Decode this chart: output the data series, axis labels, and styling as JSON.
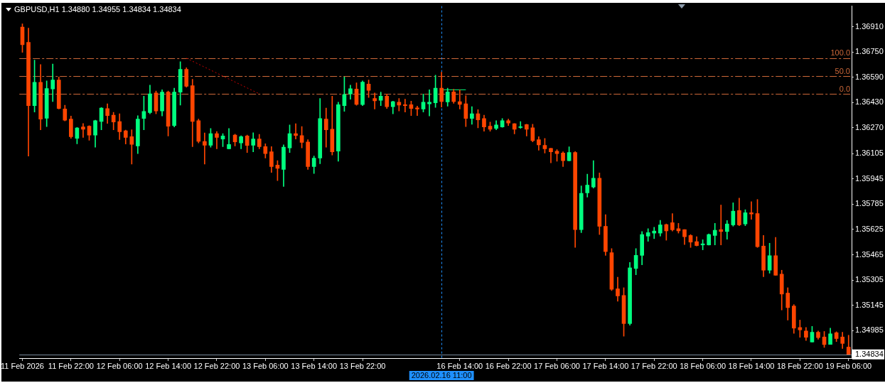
{
  "chart_data": {
    "type": "candlestick",
    "title": "GBPUSD,H1 1.34880 1.34955 1.34834 1.34834",
    "categories": [
      "11 Feb 2026",
      null,
      null,
      null,
      null,
      null,
      null,
      null,
      "11 Feb 22:00",
      null,
      null,
      null,
      null,
      null,
      null,
      null,
      "12 Feb 06:00",
      null,
      null,
      null,
      null,
      null,
      null,
      null,
      "12 Feb 14:00",
      null,
      null,
      null,
      null,
      null,
      null,
      null,
      "12 Feb 22:00",
      null,
      null,
      null,
      null,
      null,
      null,
      null,
      "13 Feb 06:00",
      null,
      null,
      null,
      null,
      null,
      null,
      null,
      "13 Feb 14:00",
      null,
      null,
      null,
      null,
      null,
      null,
      null,
      "13 Feb 22:00",
      null,
      null,
      null,
      null,
      null,
      null,
      null,
      null,
      null,
      null,
      null,
      null,
      "2026.02.16 11:00",
      null,
      null,
      "16 Feb 14:00",
      null,
      null,
      null,
      null,
      null,
      null,
      null,
      "16 Feb 22:00",
      null,
      null,
      null,
      null,
      null,
      null,
      null,
      "17 Feb 06:00",
      null,
      null,
      null,
      null,
      null,
      null,
      null,
      "17 Feb 14:00",
      null,
      null,
      null,
      null,
      null,
      null,
      null,
      "17 Feb 22:00",
      null,
      null,
      null,
      null,
      null,
      null,
      null,
      "18 Feb 06:00",
      null,
      null,
      null,
      null,
      null,
      null,
      null,
      "18 Feb 14:00",
      null,
      null,
      null,
      null,
      null,
      null,
      null,
      "18 Feb 22:00",
      null,
      null,
      null,
      null,
      null,
      null,
      null,
      "19 Feb 06:00"
    ],
    "ohlc": [
      [
        1.36907,
        1.36928,
        1.36747,
        1.36796
      ],
      [
        1.36811,
        1.369,
        1.3609,
        1.36409
      ],
      [
        1.36409,
        1.36698,
        1.36369,
        1.36557
      ],
      [
        1.36557,
        1.3667,
        1.36257,
        1.36324
      ],
      [
        1.3633,
        1.36566,
        1.36277,
        1.36518
      ],
      [
        1.36515,
        1.36673,
        1.36435,
        1.36572
      ],
      [
        1.36572,
        1.36591,
        1.36388,
        1.36391
      ],
      [
        1.36388,
        1.36412,
        1.36313,
        1.36317
      ],
      [
        1.36324,
        1.36344,
        1.36202,
        1.36213
      ],
      [
        1.36202,
        1.36272,
        1.36168,
        1.36268
      ],
      [
        1.36275,
        1.36296,
        1.36208,
        1.3626
      ],
      [
        1.36279,
        1.36283,
        1.3619,
        1.36223
      ],
      [
        1.36223,
        1.36318,
        1.36146,
        1.36314
      ],
      [
        1.36309,
        1.36398,
        1.36257,
        1.36394
      ],
      [
        1.36391,
        1.36421,
        1.36297,
        1.36346
      ],
      [
        1.36349,
        1.36367,
        1.36257,
        1.36306
      ],
      [
        1.36309,
        1.36358,
        1.36195,
        1.36244
      ],
      [
        1.3625,
        1.36255,
        1.36166,
        1.36208
      ],
      [
        1.36213,
        1.36257,
        1.36039,
        1.36164
      ],
      [
        1.36154,
        1.36346,
        1.36106,
        1.36324
      ],
      [
        1.36328,
        1.36469,
        1.36257,
        1.36373
      ],
      [
        1.36366,
        1.36539,
        1.36358,
        1.36484
      ],
      [
        1.3649,
        1.36502,
        1.36358,
        1.36376
      ],
      [
        1.36376,
        1.3651,
        1.36344,
        1.36495
      ],
      [
        1.36495,
        1.36502,
        1.36217,
        1.36279
      ],
      [
        1.36284,
        1.3652,
        1.36275,
        1.36495
      ],
      [
        1.36495,
        1.36688,
        1.36413,
        1.3664
      ],
      [
        1.3664,
        1.3665,
        1.36527,
        1.36532
      ],
      [
        1.36536,
        1.36576,
        1.36149,
        1.36309
      ],
      [
        1.36314,
        1.36324,
        1.36173,
        1.36183
      ],
      [
        1.36183,
        1.36237,
        1.36039,
        1.36158
      ],
      [
        1.36158,
        1.36265,
        1.36146,
        1.36232
      ],
      [
        1.36232,
        1.36246,
        1.36136,
        1.36208
      ],
      [
        1.36198,
        1.36232,
        1.36149,
        1.36217
      ],
      [
        1.36136,
        1.36265,
        1.36136,
        1.36164
      ],
      [
        1.36223,
        1.36229,
        1.36154,
        1.3618
      ],
      [
        1.36173,
        1.36219,
        1.36136,
        1.36213
      ],
      [
        1.36217,
        1.36223,
        1.36112,
        1.36157
      ],
      [
        1.36158,
        1.36238,
        1.36117,
        1.36198
      ],
      [
        1.36198,
        1.36228,
        1.36136,
        1.3615
      ],
      [
        1.3615,
        1.36168,
        1.36077,
        1.36106
      ],
      [
        1.36117,
        1.3615,
        1.35986,
        1.36024
      ],
      [
        1.36033,
        1.36061,
        1.35935,
        1.36012
      ],
      [
        1.36005,
        1.36161,
        1.35897,
        1.36146
      ],
      [
        1.36142,
        1.36287,
        1.36112,
        1.36232
      ],
      [
        1.36232,
        1.36295,
        1.36198,
        1.3622
      ],
      [
        1.3622,
        1.36277,
        1.36142,
        1.36176
      ],
      [
        1.36179,
        1.36194,
        1.36005,
        1.36024
      ],
      [
        1.36024,
        1.3609,
        1.3598,
        1.36077
      ],
      [
        1.36077,
        1.36455,
        1.36042,
        1.36328
      ],
      [
        1.36324,
        1.36394,
        1.36146,
        1.36257
      ],
      [
        1.3626,
        1.36469,
        1.36097,
        1.36117
      ],
      [
        1.36121,
        1.36431,
        1.36057,
        1.36416
      ],
      [
        1.36409,
        1.36591,
        1.36373,
        1.3648
      ],
      [
        1.36484,
        1.36539,
        1.3645,
        1.36517
      ],
      [
        1.36514,
        1.36554,
        1.36412,
        1.36417
      ],
      [
        1.36416,
        1.36566,
        1.36409,
        1.36558
      ],
      [
        1.36546,
        1.36572,
        1.36461,
        1.36506
      ],
      [
        1.36455,
        1.3649,
        1.36388,
        1.3644
      ],
      [
        1.36443,
        1.36495,
        1.36409,
        1.36469
      ],
      [
        1.36469,
        1.36483,
        1.36391,
        1.36403
      ],
      [
        1.36403,
        1.36438,
        1.36358,
        1.36435
      ],
      [
        1.36431,
        1.36455,
        1.36376,
        1.36413
      ],
      [
        1.36416,
        1.3645,
        1.36369,
        1.36409
      ],
      [
        1.36416,
        1.36438,
        1.36346,
        1.36391
      ],
      [
        1.36395,
        1.36406,
        1.36346,
        1.36388
      ],
      [
        1.36388,
        1.36483,
        1.36369,
        1.36431
      ],
      [
        1.36421,
        1.3651,
        1.36344,
        1.36431
      ],
      [
        1.36428,
        1.36602,
        1.36398,
        1.3652
      ],
      [
        1.3652,
        1.36621,
        1.36401,
        1.36435
      ],
      [
        1.36433,
        1.3652,
        1.36406,
        1.36497
      ],
      [
        1.36497,
        1.36513,
        1.36424,
        1.36435
      ],
      [
        1.36435,
        1.3651,
        1.36388,
        1.36417
      ],
      [
        1.36421,
        1.36473,
        1.36277,
        1.36328
      ],
      [
        1.36328,
        1.36403,
        1.36291,
        1.36358
      ],
      [
        1.36358,
        1.36384,
        1.36269,
        1.3632
      ],
      [
        1.36328,
        1.36349,
        1.36247,
        1.36275
      ],
      [
        1.36279,
        1.36305,
        1.36247,
        1.3626
      ],
      [
        1.36265,
        1.36314,
        1.36257,
        1.36287
      ],
      [
        1.36275,
        1.36328,
        1.36272,
        1.36314
      ],
      [
        1.36314,
        1.36324,
        1.36284,
        1.36299
      ],
      [
        1.36295,
        1.36296,
        1.3623,
        1.3626
      ],
      [
        1.36271,
        1.36309,
        1.36265,
        1.36275
      ],
      [
        1.3629,
        1.36292,
        1.36217,
        1.3626
      ],
      [
        1.36269,
        1.36292,
        1.3618,
        1.36188
      ],
      [
        1.36194,
        1.36213,
        1.36127,
        1.36161
      ],
      [
        1.36158,
        1.36202,
        1.36109,
        1.36136
      ],
      [
        1.36139,
        1.3614,
        1.36047,
        1.36117
      ],
      [
        1.36121,
        1.36131,
        1.36057,
        1.36106
      ],
      [
        1.36109,
        1.36117,
        1.36023,
        1.36061
      ],
      [
        1.36061,
        1.36149,
        1.3606,
        1.36113
      ],
      [
        1.36113,
        1.36118,
        1.35511,
        1.35624
      ],
      [
        1.35624,
        1.35901,
        1.35605,
        1.35854
      ],
      [
        1.35857,
        1.35976,
        1.3583,
        1.35906
      ],
      [
        1.35894,
        1.36061,
        1.35887,
        1.3595
      ],
      [
        1.3595,
        1.35983,
        1.35593,
        1.35645
      ],
      [
        1.35645,
        1.35719,
        1.35461,
        1.35485
      ],
      [
        1.35478,
        1.35504,
        1.35238,
        1.35246
      ],
      [
        1.35249,
        1.35323,
        1.3517,
        1.35204
      ],
      [
        1.35207,
        1.35256,
        1.34949,
        1.35029
      ],
      [
        1.35029,
        1.35416,
        1.35019,
        1.35382
      ],
      [
        1.35378,
        1.35504,
        1.35338,
        1.35461
      ],
      [
        1.35461,
        1.35612,
        1.35401,
        1.35593
      ],
      [
        1.35583,
        1.3563,
        1.3555,
        1.35605
      ],
      [
        1.35602,
        1.35639,
        1.35567,
        1.35615
      ],
      [
        1.35602,
        1.35683,
        1.35583,
        1.35654
      ],
      [
        1.35656,
        1.3566,
        1.35557,
        1.35616
      ],
      [
        1.35668,
        1.35726,
        1.35615,
        1.35623
      ],
      [
        1.3563,
        1.35664,
        1.35602,
        1.35616
      ],
      [
        1.35624,
        1.35624,
        1.3553,
        1.35579
      ],
      [
        1.35587,
        1.35593,
        1.35511,
        1.35545
      ],
      [
        1.35548,
        1.35579,
        1.3552,
        1.35523
      ],
      [
        1.35527,
        1.3556,
        1.35496,
        1.35534
      ],
      [
        1.35527,
        1.35597,
        1.35526,
        1.35593
      ],
      [
        1.35587,
        1.35664,
        1.35527,
        1.3562
      ],
      [
        1.35624,
        1.3578,
        1.35527,
        1.35612
      ],
      [
        1.35612,
        1.35682,
        1.35563,
        1.3566
      ],
      [
        1.35654,
        1.35794,
        1.35646,
        1.35741
      ],
      [
        1.35745,
        1.35824,
        1.35649,
        1.35654
      ],
      [
        1.3566,
        1.3575,
        1.35649,
        1.35731
      ],
      [
        1.35731,
        1.35801,
        1.35689,
        1.35723
      ],
      [
        1.35726,
        1.35815,
        1.35511,
        1.35516
      ],
      [
        1.3552,
        1.35587,
        1.35326,
        1.35367
      ],
      [
        1.35367,
        1.35538,
        1.35348,
        1.35459
      ],
      [
        1.35459,
        1.35575,
        1.35335,
        1.35335
      ],
      [
        1.35342,
        1.35367,
        1.35115,
        1.35216
      ],
      [
        1.35222,
        1.35256,
        1.35051,
        1.3513
      ],
      [
        1.3514,
        1.35149,
        1.34967,
        1.35
      ],
      [
        1.35004,
        1.35051,
        1.34942,
        1.34989
      ],
      [
        1.34982,
        1.35004,
        1.34922,
        1.34942
      ],
      [
        1.34912,
        1.35011,
        1.34912,
        1.34974
      ],
      [
        1.34974,
        1.34982,
        1.3493,
        1.3494
      ],
      [
        1.34944,
        1.34979,
        1.34878,
        1.34896
      ],
      [
        1.34897,
        1.35,
        1.34897,
        1.34964
      ],
      [
        1.34971,
        1.34977,
        1.34915,
        1.34934
      ],
      [
        1.34944,
        1.34974,
        1.34871,
        1.34903
      ],
      [
        1.3488,
        1.34955,
        1.34834,
        1.34834
      ]
    ],
    "colors": [
      "#ff4500",
      "#ff4500",
      "#00ff7f",
      "#ff4500",
      "#00ff7f",
      "#00ff7f",
      "#ff4500",
      "#ff4500",
      "#ff4500",
      "#00ff7f",
      "#ff4500",
      "#ff4500",
      "#00ff7f",
      "#00ff7f",
      "#ff4500",
      "#ff4500",
      "#ff4500",
      "#ff4500",
      "#ff4500",
      "#00ff7f",
      "#00ff7f",
      "#00ff7f",
      "#ff4500",
      "#00ff7f",
      "#ff4500",
      "#00ff7f",
      "#00ff7f",
      "#ff4500",
      "#ff4500",
      "#ff4500",
      "#ff4500",
      "#00ff7f",
      "#ff4500",
      "#00ff7f",
      "#00ff7f",
      "#ff4500",
      "#00ff7f",
      "#ff4500",
      "#00ff7f",
      "#ff4500",
      "#ff4500",
      "#ff4500",
      "#ff4500",
      "#00ff7f",
      "#00ff7f",
      "#ff4500",
      "#ff4500",
      "#ff4500",
      "#00ff7f",
      "#00ff7f",
      "#ff4500",
      "#ff4500",
      "#00ff7f",
      "#00ff7f",
      "#00ff7f",
      "#ff4500",
      "#00ff7f",
      "#ff4500",
      "#ff4500",
      "#00ff7f",
      "#ff4500",
      "#00ff7f",
      "#ff4500",
      "#ff4500",
      "#ff4500",
      "#ff4500",
      "#00ff7f",
      "#00ff7f",
      "#00ff7f",
      "#ff4500",
      "#00ff7f",
      "#ff4500",
      "#ff4500",
      "#ff4500",
      "#00ff7f",
      "#ff4500",
      "#ff4500",
      "#ff4500",
      "#00ff7f",
      "#00ff7f",
      "#ff4500",
      "#ff4500",
      "#00ff7f",
      "#ff4500",
      "#ff4500",
      "#ff4500",
      "#ff4500",
      "#ff4500",
      "#ff4500",
      "#ff4500",
      "#00ff7f",
      "#ff4500",
      "#00ff7f",
      "#00ff7f",
      "#00ff7f",
      "#ff4500",
      "#ff4500",
      "#ff4500",
      "#ff4500",
      "#ff4500",
      "#00ff7f",
      "#00ff7f",
      "#00ff7f",
      "#00ff7f",
      "#00ff7f",
      "#00ff7f",
      "#ff4500",
      "#ff4500",
      "#ff4500",
      "#ff4500",
      "#ff4500",
      "#ff4500",
      "#00ff7f",
      "#00ff7f",
      "#00ff7f",
      "#ff4500",
      "#00ff7f",
      "#00ff7f",
      "#ff4500",
      "#00ff7f",
      "#ff4500",
      "#ff4500",
      "#ff4500",
      "#00ff7f",
      "#ff4500",
      "#ff4500",
      "#ff4500",
      "#ff4500",
      "#ff4500",
      "#ff4500",
      "#00ff7f",
      "#ff4500",
      "#ff4500",
      "#00ff7f",
      "#ff4500",
      "#ff4500",
      "#ff4500"
    ],
    "series": [
      {
        "type": "line",
        "color": "#cc0000",
        "line_style": "dotted",
        "values": [
          null,
          null,
          null,
          null,
          null,
          null,
          null,
          null,
          null,
          null,
          null,
          null,
          null,
          null,
          null,
          null,
          null,
          null,
          null,
          null,
          null,
          null,
          null,
          null,
          null,
          null,
          null,
          1.3671,
          null,
          null,
          null,
          null,
          null,
          null,
          null,
          null,
          null,
          null,
          null,
          1.36484,
          null,
          null,
          null,
          null,
          null,
          null,
          null,
          null,
          null,
          null,
          null,
          null,
          null,
          null,
          null,
          null,
          null,
          null,
          null,
          null,
          null,
          null,
          null,
          null,
          null,
          null,
          null,
          null,
          null,
          null,
          null,
          null,
          null,
          null,
          null,
          null,
          null,
          null,
          null,
          null,
          null,
          null,
          null,
          null,
          null,
          null,
          null,
          null,
          null,
          null,
          null,
          null,
          null,
          null,
          null,
          null,
          null,
          null,
          null,
          null,
          null,
          null,
          null,
          null,
          null,
          null,
          null,
          null,
          null,
          null,
          null,
          null,
          null,
          null,
          null,
          null,
          null,
          null,
          null,
          null,
          null,
          null,
          null,
          null,
          null,
          null,
          null,
          null,
          null,
          null,
          null,
          null,
          null,
          null,
          null,
          null,
          null
        ]
      },
      {
        "type": "line",
        "color": "#00ff7f",
        "values": [
          null,
          null,
          null,
          null,
          null,
          null,
          null,
          null,
          null,
          null,
          null,
          null,
          null,
          null,
          null,
          null,
          null,
          null,
          null,
          null,
          null,
          null,
          null,
          null,
          null,
          null,
          null,
          null,
          null,
          null,
          null,
          null,
          null,
          null,
          null,
          null,
          null,
          null,
          null,
          null,
          null,
          null,
          null,
          null,
          null,
          null,
          null,
          null,
          null,
          null,
          null,
          null,
          null,
          null,
          null,
          null,
          null,
          null,
          null,
          null,
          null,
          null,
          null,
          null,
          null,
          null,
          null,
          null,
          null,
          1.3651,
          1.3651,
          1.3651,
          1.3651,
          1.3651,
          null,
          null,
          null,
          null,
          null,
          null,
          null,
          null,
          null,
          null,
          null,
          null,
          null,
          null,
          null,
          null,
          null,
          null,
          null,
          null,
          null,
          null,
          null,
          null,
          null,
          null,
          null,
          null,
          null,
          null,
          null,
          null,
          null,
          null,
          null,
          null,
          null,
          null,
          null,
          null,
          null,
          null,
          null,
          null,
          null,
          null,
          null,
          null,
          null,
          null,
          null,
          null,
          null,
          null,
          null,
          null,
          null,
          null,
          null,
          null,
          null,
          null,
          null
        ]
      }
    ],
    "ylim": [
      1.3481,
      1.3704
    ],
    "yticks": [
      {
        "value": 1.3691,
        "label": "1.36910"
      },
      {
        "value": 1.3675,
        "label": "1.36750"
      },
      {
        "value": 1.3659,
        "label": "1.36590"
      },
      {
        "value": 1.3643,
        "label": "1.36430"
      },
      {
        "value": 1.3627,
        "label": "1.36270"
      },
      1.36105,
      1.35945,
      1.35785,
      1.35625,
      1.35465,
      1.35305,
      1.35145,
      1.34985
    ],
    "ref_lines": [
      {
        "axis": "y",
        "value": 1.3671,
        "color": "#cd6839",
        "line_style": "dashed"
      },
      {
        "axis": "y",
        "value": 1.36597,
        "color": "#cd6839",
        "line_style": "dashed"
      },
      {
        "axis": "y",
        "value": 1.36484,
        "color": "#cd6839",
        "line_style": "dashed"
      },
      {
        "axis": "y",
        "value": 1.34834,
        "label": "1.34834",
        "color": "#778899",
        "line_style": "solid"
      },
      {
        "axis": "x",
        "value": "2026.02.16 11:00",
        "color": "#1e90ff",
        "line_style": "dashed"
      }
    ],
    "annotations": [
      {
        "text": "100.0",
        "y": 1.3671
      },
      {
        "text": "50.0",
        "y": 1.36597
      },
      {
        "text": "0.0",
        "y": 1.36484
      }
    ]
  }
}
